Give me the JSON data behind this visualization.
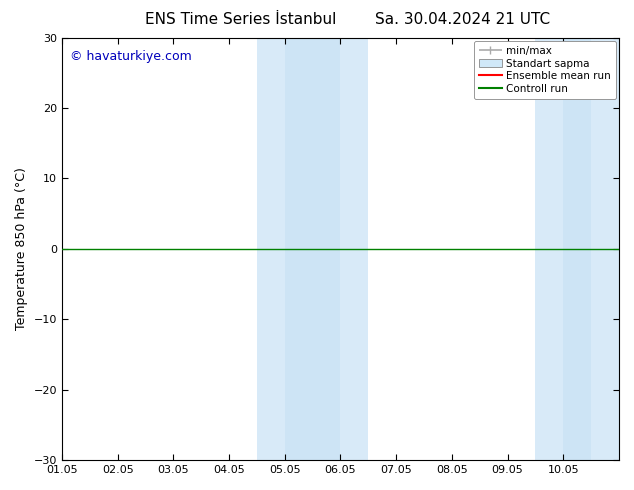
{
  "title": "ENS Time Series İstanbul",
  "subtitle": "Sa. 30.04.2024 21 UTC",
  "ylabel": "Temperature 850 hPa (°C)",
  "watermark": "© havaturkiye.com",
  "xlim_start": 0,
  "xlim_end": 10,
  "ylim": [
    -30,
    30
  ],
  "yticks": [
    -30,
    -20,
    -10,
    0,
    10,
    20,
    30
  ],
  "xtick_labels": [
    "01.05",
    "02.05",
    "03.05",
    "04.05",
    "05.05",
    "06.05",
    "07.05",
    "08.05",
    "09.05",
    "10.05"
  ],
  "xtick_positions": [
    0,
    1,
    2,
    3,
    4,
    5,
    6,
    7,
    8,
    9
  ],
  "zero_line_y": 0,
  "control_run_color": "#008000",
  "ensemble_mean_color": "#ff0000",
  "shaded_bands": [
    {
      "xmin": 3.5,
      "xmax": 4.0,
      "color": "#d8eaf8"
    },
    {
      "xmin": 4.0,
      "xmax": 5.0,
      "color": "#cde4f5"
    },
    {
      "xmin": 5.0,
      "xmax": 5.5,
      "color": "#d8eaf8"
    },
    {
      "xmin": 8.5,
      "xmax": 9.0,
      "color": "#d8eaf8"
    },
    {
      "xmin": 9.0,
      "xmax": 9.5,
      "color": "#cde4f5"
    },
    {
      "xmin": 9.5,
      "xmax": 10.0,
      "color": "#d8eaf8"
    }
  ],
  "legend_labels": [
    "min/max",
    "Standart sapma",
    "Ensemble mean run",
    "Controll run"
  ],
  "minmax_color": "#aaaaaa",
  "std_color": "#d0e8f8",
  "bg_color": "#ffffff",
  "title_fontsize": 11,
  "axis_label_fontsize": 9,
  "tick_fontsize": 8,
  "watermark_fontsize": 9,
  "watermark_color": "#0000bb",
  "legend_fontsize": 7.5,
  "spine_color": "#000000",
  "tick_color": "#000000"
}
